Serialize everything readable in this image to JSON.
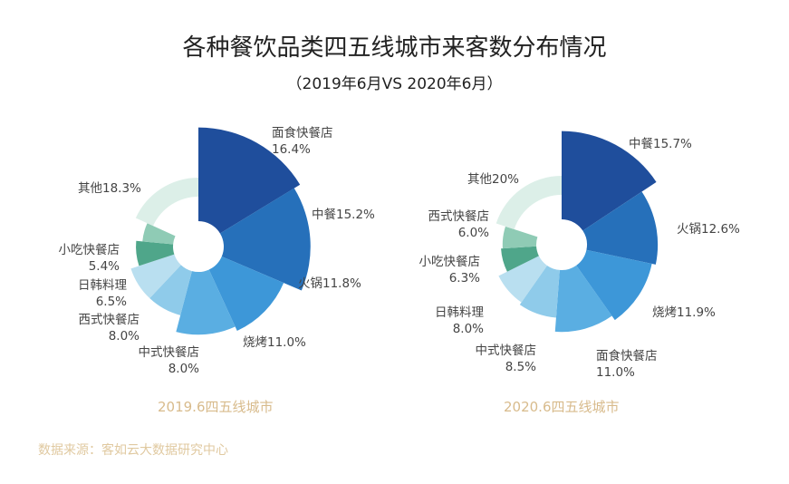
{
  "title": "各种餐饮品类四五线城市来客数分布情况",
  "subtitle": "（2019年6月VS 2020年6月）",
  "source": "数据来源：客如云大数据研究中心",
  "colors": [
    "#1f4e9c",
    "#2670ba",
    "#3d97d8",
    "#5aaee2",
    "#8fcbea",
    "#b9dff0",
    "#4fa68a",
    "#8fcbb5",
    "#dcefe8"
  ],
  "chart_data": [
    {
      "type": "pie",
      "title": "2019.6四五线城市",
      "categories": [
        "面食快餐店",
        "中餐",
        "火锅",
        "烧烤",
        "中式快餐店",
        "西式快餐店",
        "日韩料理",
        "小吃快餐店",
        "其他"
      ],
      "values": [
        16.4,
        15.2,
        11.8,
        11.0,
        8.0,
        8.0,
        6.5,
        5.4,
        18.3
      ],
      "labels": [
        "16.4%",
        "15.2%",
        "11.8%",
        "11.0%",
        "8.0%",
        "8.0%",
        "6.5%",
        "5.4%",
        "18.3%"
      ]
    },
    {
      "type": "pie",
      "title": "2020.6四五线城市",
      "categories": [
        "中餐",
        "火锅",
        "烧烤",
        "面食快餐店",
        "中式快餐店",
        "日韩料理",
        "小吃快餐店",
        "西式快餐店",
        "其他"
      ],
      "values": [
        15.7,
        12.6,
        11.9,
        11.0,
        8.5,
        8.0,
        6.3,
        6.0,
        20
      ],
      "labels": [
        "15.7%",
        "12.6%",
        "11.9%",
        "11.0%",
        "8.5%",
        "8.0%",
        "6.3%",
        "6.0%",
        "20%"
      ]
    }
  ]
}
